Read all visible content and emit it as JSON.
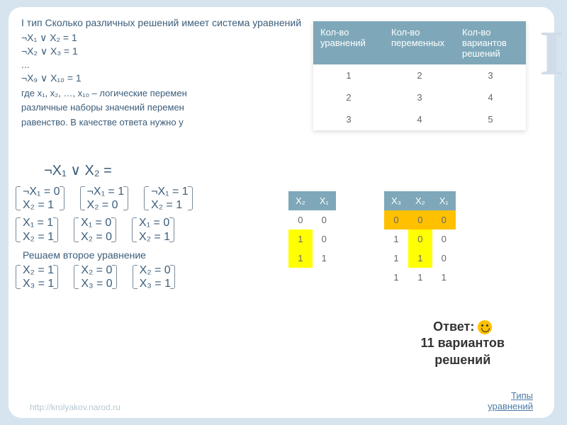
{
  "title": "I тип  Сколько различных решений имеет система уравнений",
  "equations": [
    "¬X₁ ∨ X₂ = 1",
    "¬X₂ ∨ X₃ = 1",
    "...",
    "¬X₉ ∨ X₁₀ = 1"
  ],
  "subtext_lines": [
    "где x₁, x₂, …, x₁₀ – логические перемен",
    "различные наборы значений перемен",
    "равенство. В качестве ответа нужно у"
  ],
  "count_table": {
    "headers": [
      "Кол-во уравнений",
      "Кол-во переменных",
      "Кол-во вариантов решений"
    ],
    "rows": [
      [
        "1",
        "2",
        "3"
      ],
      [
        "2",
        "3",
        "4"
      ],
      [
        "3",
        "4",
        "5"
      ]
    ],
    "header_bg": "#7ea8b9",
    "header_color": "#ffffff"
  },
  "big_eq": "¬X₁ ∨ X₂ =",
  "branch_rows": [
    [
      {
        "a": "¬X₁ = 0",
        "b": "X₂ = 1"
      },
      {
        "a": "¬X₁ = 1",
        "b": "X₂ = 0"
      },
      {
        "a": "¬X₁ = 1",
        "b": "X₂ = 1"
      }
    ],
    [
      {
        "a": "X₁ = 1",
        "b": "X₂ = 1"
      },
      {
        "a": "X₁ = 0",
        "b": "X₂ = 0"
      },
      {
        "a": "X₁ = 0",
        "b": "X₂ = 1"
      }
    ]
  ],
  "solve2_label": "Решаем  второе уравнение",
  "branch_rows2": [
    [
      {
        "a": "X₂ = 1",
        "b": "X₃ = 1"
      },
      {
        "a": "X₂ = 0",
        "b": "X₃ = 0"
      },
      {
        "a": "X₂ = 0",
        "b": "X₃ = 1"
      }
    ]
  ],
  "truth2": {
    "headers": [
      "X₂",
      "X₁"
    ],
    "rows": [
      [
        {
          "v": "0",
          "c": ""
        },
        {
          "v": "0",
          "c": ""
        }
      ],
      [
        {
          "v": "1",
          "c": "y"
        },
        {
          "v": "0",
          "c": ""
        }
      ],
      [
        {
          "v": "1",
          "c": "y"
        },
        {
          "v": "1",
          "c": ""
        }
      ]
    ]
  },
  "truth3": {
    "headers": [
      "X₃",
      "X₂",
      "X₁"
    ],
    "rows": [
      [
        {
          "v": "0",
          "c": "o"
        },
        {
          "v": "0",
          "c": "o"
        },
        {
          "v": "0",
          "c": "o"
        }
      ],
      [
        {
          "v": "1",
          "c": ""
        },
        {
          "v": "0",
          "c": "y"
        },
        {
          "v": "0",
          "c": ""
        }
      ],
      [
        {
          "v": "1",
          "c": ""
        },
        {
          "v": "1",
          "c": "y"
        },
        {
          "v": "0",
          "c": ""
        }
      ],
      [
        {
          "v": "1",
          "c": ""
        },
        {
          "v": "1",
          "c": ""
        },
        {
          "v": "1",
          "c": ""
        }
      ]
    ]
  },
  "answer": {
    "line1": "Ответ:",
    "line2": "11 вариантов",
    "line3": "решений"
  },
  "link1": "http://krolyakov.narod.ru",
  "link2": {
    "l1": "Типы",
    "l2": "уравнений"
  },
  "side_label": "I",
  "colors": {
    "slide_bg": "#ffffff",
    "body_bg": "#d6e4ef",
    "text": "#3b5d7a",
    "yellow": "#ffff00",
    "orange": "#ffc000"
  }
}
